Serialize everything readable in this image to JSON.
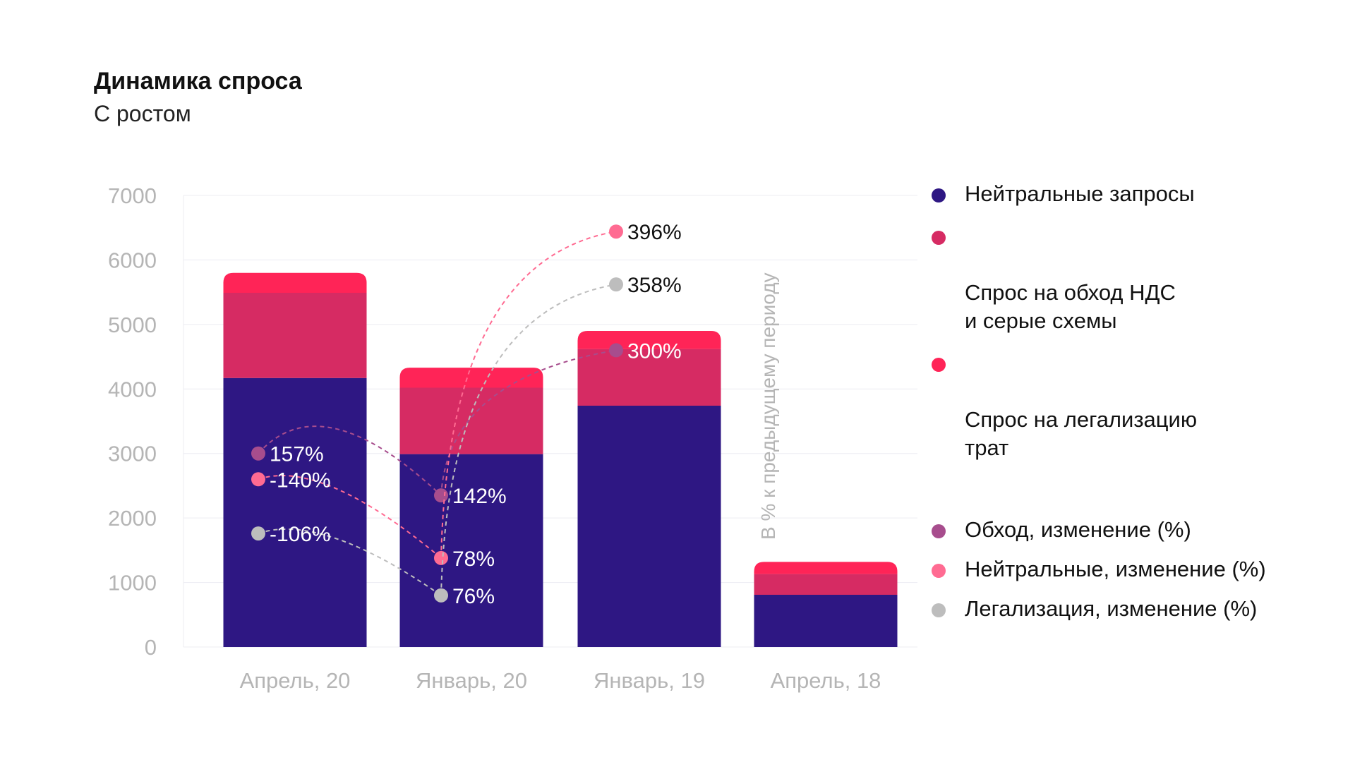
{
  "title": "Динамика спроса",
  "subtitle": "С ростом",
  "chart_data": {
    "type": "bar",
    "stacked": true,
    "categories": [
      "Апрель, 20",
      "Январь, 20",
      "Январь, 19",
      "Апрель, 18"
    ],
    "ylim": [
      0,
      7000
    ],
    "yticks": [
      "0",
      "1000",
      "2000",
      "3000",
      "4000",
      "5000",
      "6000",
      "7000"
    ],
    "grid": true,
    "series": [
      {
        "name": "Нейтральные запросы",
        "color": "#2e1783",
        "values": [
          4170,
          2990,
          3740,
          810
        ]
      },
      {
        "name": "Спрос на обход НДС\nи серые схемы",
        "color": "#d62b63",
        "values": [
          1320,
          1030,
          880,
          320
        ]
      },
      {
        "name": "Спрос на легализацию\nтрат",
        "color": "#ff2457",
        "values": [
          310,
          310,
          280,
          190
        ]
      }
    ],
    "change_series": [
      {
        "name": "Обход, изменение (%)",
        "color": "#a74d8d",
        "points": [
          {
            "category": "Апрель, 20",
            "y": 3000,
            "label": "157%"
          },
          {
            "category": "Январь, 20",
            "y": 2350,
            "label": "142%"
          },
          {
            "category": "Январь, 19",
            "y": 4600,
            "label": "300%"
          }
        ]
      },
      {
        "name": "Нейтральные, изменение (%)",
        "color": "#ff6b92",
        "points": [
          {
            "category": "Апрель, 20",
            "y": 2600,
            "label": "-140%"
          },
          {
            "category": "Январь, 20",
            "y": 1380,
            "label": "78%"
          },
          {
            "category": "Январь, 19",
            "y": 6440,
            "label": "396%"
          }
        ]
      },
      {
        "name": "Легализация, изменение (%)",
        "color": "#bdbdbd",
        "points": [
          {
            "category": "Апрель, 20",
            "y": 1760,
            "label": "-106%"
          },
          {
            "category": "Январь, 20",
            "y": 800,
            "label": "76%"
          },
          {
            "category": "Январь, 19",
            "y": 5620,
            "label": "358%"
          }
        ]
      }
    ],
    "right_axis_label": "В % к предыдущему периоду"
  }
}
